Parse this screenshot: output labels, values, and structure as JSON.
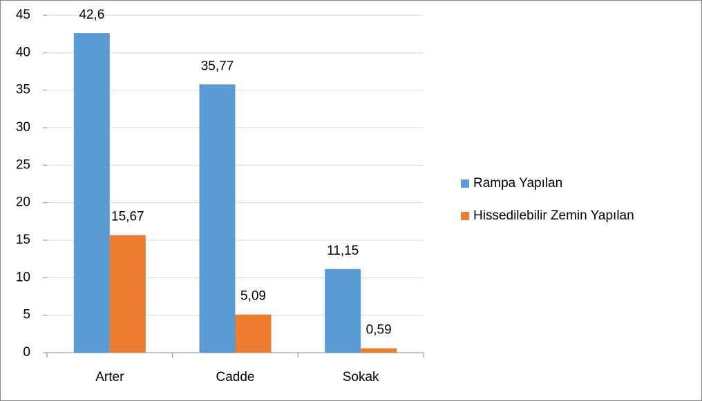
{
  "chart_data": {
    "type": "bar",
    "categories": [
      "Arter",
      "Cadde",
      "Sokak"
    ],
    "series": [
      {
        "name": "Rampa Yapılan",
        "color": "#5b9bd5",
        "values": [
          42.6,
          35.77,
          11.15
        ],
        "value_labels": [
          "42,6",
          "35,77",
          "11,15"
        ]
      },
      {
        "name": "Hissedilebilir Zemin Yapılan",
        "color": "#ed7d31",
        "values": [
          15.67,
          5.09,
          0.59
        ],
        "value_labels": [
          "15,67",
          "5,09",
          "0,59"
        ]
      }
    ],
    "ylim": [
      0,
      45
    ],
    "yticks": [
      0,
      5,
      10,
      15,
      20,
      25,
      30,
      35,
      40,
      45
    ],
    "grid": true,
    "legend": "right"
  }
}
